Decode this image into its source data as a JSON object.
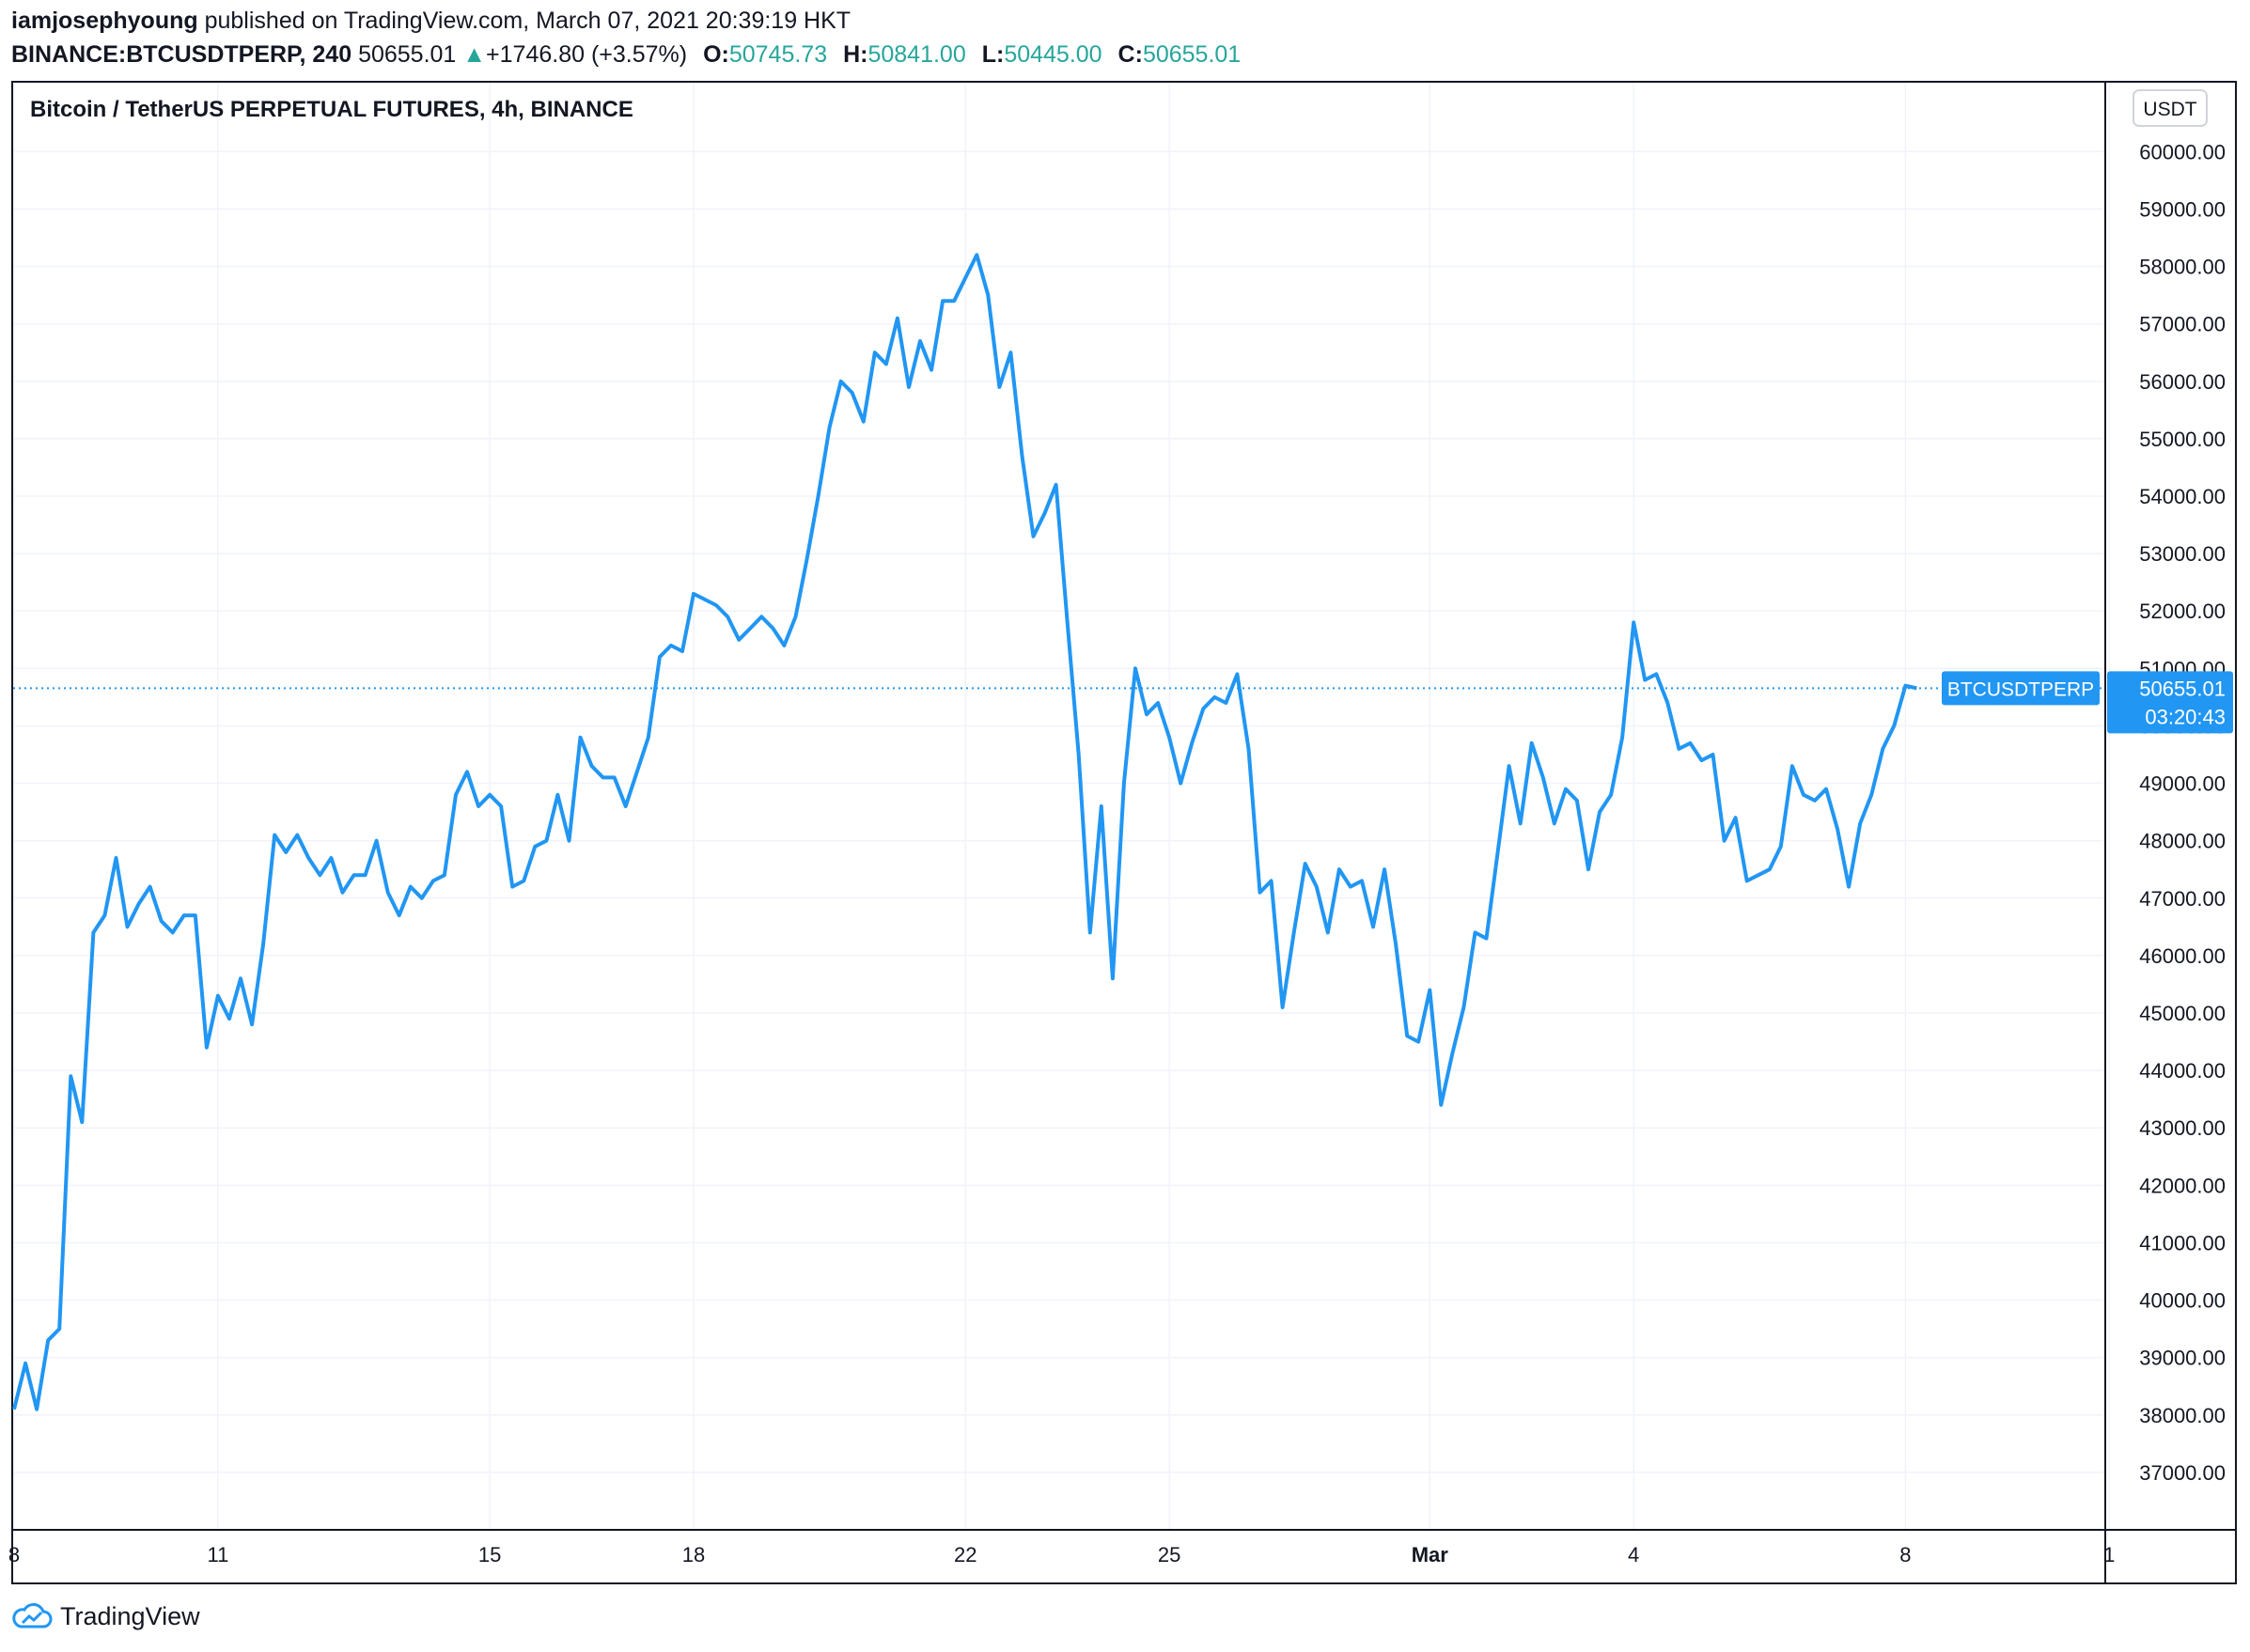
{
  "header": {
    "author": "iamjosephyoung",
    "published_text": "published on TradingView.com, March 07, 2021 20:39:19 HKT",
    "symbol": "BINANCE:BTCUSDTPERP, 240",
    "last": "50655.01",
    "change_arrow": "▲",
    "change": "+1746.80 (+3.57%)",
    "o_label": "O:",
    "o": "50745.73",
    "h_label": "H:",
    "h": "50841.00",
    "l_label": "L:",
    "l": "50445.00",
    "c_label": "C:",
    "c": "50655.01"
  },
  "footer": {
    "brand": "TradingView",
    "logo_icon": "tradingview-cloud-icon"
  },
  "colors": {
    "line": "#2196f3",
    "up": "#26a69a",
    "grid": "#f0f3fa",
    "text": "#131722"
  },
  "chart_data": {
    "type": "line",
    "title": "Bitcoin / TetherUS PERPETUAL FUTURES, 4h, BINANCE",
    "currency_badge": "USDT",
    "series_label": "BTCUSDTPERP",
    "last_price_label": "50655.01",
    "countdown": "03:20:43",
    "last_price": 50655.01,
    "ylim": [
      36000,
      61200
    ],
    "y_ticks": [
      37000,
      38000,
      39000,
      40000,
      41000,
      42000,
      43000,
      44000,
      45000,
      46000,
      47000,
      48000,
      49000,
      50000,
      51000,
      52000,
      53000,
      54000,
      55000,
      56000,
      57000,
      58000,
      59000,
      60000
    ],
    "y_tick_labels": [
      "37000.00",
      "38000.00",
      "39000.00",
      "40000.00",
      "41000.00",
      "42000.00",
      "43000.00",
      "44000.00",
      "45000.00",
      "46000.00",
      "47000.00",
      "48000.00",
      "49000.00",
      "50000.00",
      "51000.00",
      "52000.00",
      "53000.00",
      "54000.00",
      "55000.00",
      "56000.00",
      "57000.00",
      "58000.00",
      "59000.00",
      "60000.00"
    ],
    "x_ticks": [
      {
        "label": "8",
        "bar": 0
      },
      {
        "label": "11",
        "bar": 18
      },
      {
        "label": "15",
        "bar": 42
      },
      {
        "label": "18",
        "bar": 60
      },
      {
        "label": "22",
        "bar": 84
      },
      {
        "label": "25",
        "bar": 102
      },
      {
        "label": "Mar",
        "bar": 125,
        "bold": true
      },
      {
        "label": "4",
        "bar": 143
      },
      {
        "label": "8",
        "bar": 167
      },
      {
        "label": "1",
        "bar": 185
      }
    ],
    "x_range_bars": [
      0,
      187
    ],
    "grid": true,
    "values": [
      38100,
      38900,
      38100,
      39300,
      39500,
      43900,
      43100,
      46400,
      46700,
      47700,
      46500,
      46900,
      47200,
      46600,
      46400,
      46700,
      46700,
      44400,
      45300,
      44900,
      45600,
      44800,
      46200,
      48100,
      47800,
      48100,
      47700,
      47400,
      47700,
      47100,
      47400,
      47400,
      48000,
      47100,
      46700,
      47200,
      47000,
      47300,
      47400,
      48800,
      49200,
      48600,
      48800,
      48600,
      47200,
      47300,
      47900,
      48000,
      48800,
      48000,
      49800,
      49300,
      49100,
      49100,
      48600,
      49200,
      49800,
      51200,
      51400,
      51300,
      52300,
      52200,
      52100,
      51900,
      51500,
      51700,
      51900,
      51700,
      51400,
      51900,
      52900,
      54000,
      55200,
      56000,
      55800,
      55300,
      56500,
      56300,
      57100,
      55900,
      56700,
      56200,
      57400,
      57400,
      57800,
      58200,
      57500,
      55900,
      56500,
      54700,
      53300,
      53700,
      54200,
      51800,
      49500,
      46400,
      48600,
      45600,
      49000,
      51000,
      50200,
      50400,
      49800,
      49000,
      49700,
      50300,
      50500,
      50400,
      50900,
      49600,
      47100,
      47300,
      45100,
      46400,
      47600,
      47200,
      46400,
      47500,
      47200,
      47300,
      46500,
      47500,
      46200,
      44600,
      44500,
      45400,
      43400,
      44300,
      45100,
      46400,
      46300,
      47800,
      49300,
      48300,
      49700,
      49100,
      48300,
      48900,
      48700,
      47500,
      48500,
      48800,
      49800,
      51800,
      50800,
      50900,
      50400,
      49600,
      49700,
      49400,
      49500,
      48000,
      48400,
      47300,
      47400,
      47500,
      47900,
      49300,
      48800,
      48700,
      48900,
      48200,
      47200,
      48300,
      48800,
      49600,
      50000,
      50700,
      50655.01
    ]
  }
}
